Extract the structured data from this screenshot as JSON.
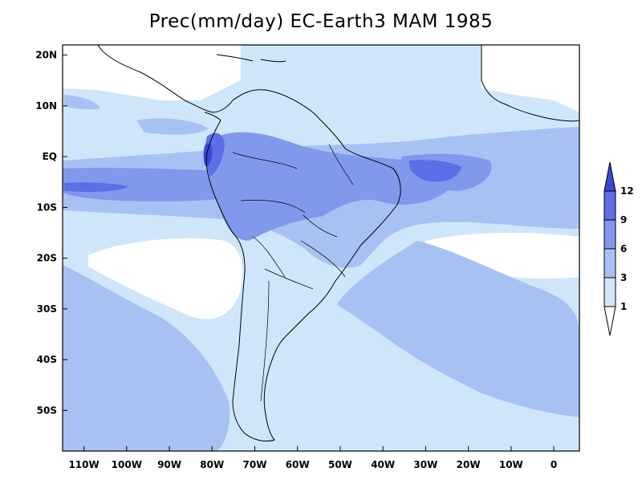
{
  "title": "Prec(mm/day) EC-Earth3 MAM 1985",
  "map": {
    "lon_range": [
      -115,
      6
    ],
    "lat_range": [
      -58,
      22
    ],
    "lon_ticks": [
      "110W",
      "100W",
      "90W",
      "80W",
      "70W",
      "60W",
      "50W",
      "40W",
      "30W",
      "20W",
      "10W",
      "0"
    ],
    "lat_ticks": [
      "20N",
      "10N",
      "EQ",
      "10S",
      "20S",
      "30S",
      "40S",
      "50S"
    ]
  },
  "colorbar": {
    "labels": [
      "1",
      "3",
      "6",
      "9",
      "12"
    ],
    "colors": [
      "#ffffff",
      "#cfe6fa",
      "#a7c1f3",
      "#8199ec",
      "#5d6fe6",
      "#3a46dc"
    ]
  }
}
